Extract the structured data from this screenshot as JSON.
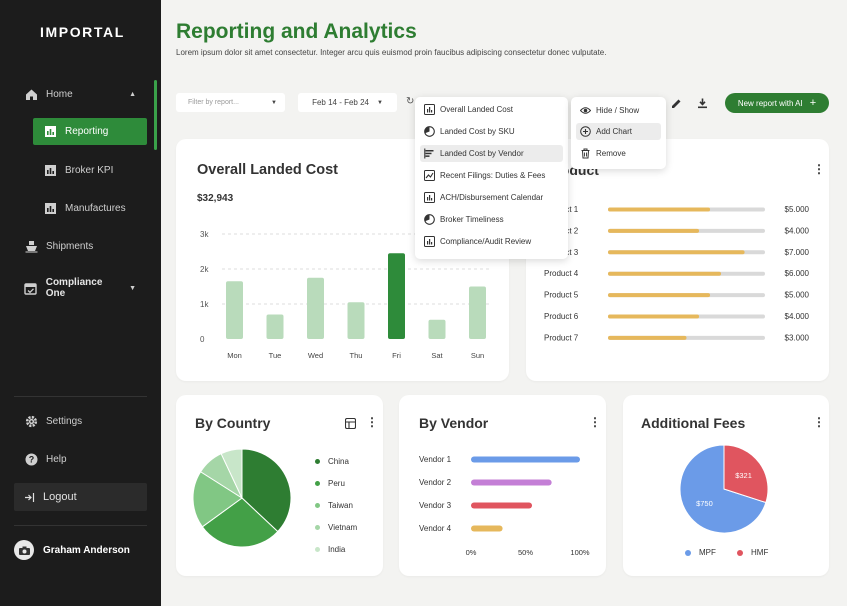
{
  "sidebar": {
    "brand": "IMPORTAL",
    "items": [
      {
        "label": "Home"
      },
      {
        "label": "Reporting"
      },
      {
        "label": "Broker KPI"
      },
      {
        "label": "Manufactures"
      },
      {
        "label": "Shipments"
      },
      {
        "label": "Compliance One"
      }
    ],
    "settings": "Settings",
    "help": "Help",
    "logout": "Logout",
    "user": "Graham Anderson"
  },
  "header": {
    "title": "Reporting and Analytics",
    "subtitle": "Lorem ipsum dolor sit amet consectetur. Integer arcu quis euismod proin faucibus adipiscing consectetur donec vulputate."
  },
  "toolbar": {
    "filter_placeholder": "Filter by report...",
    "date_range": "Feb 14 - Feb 24",
    "new_report": "New report with AI"
  },
  "report_menu": [
    "Overall Landed Cost",
    "Landed Cost by SKU",
    "Landed Cost by Vendor",
    "Recent Filings: Duties & Fees",
    "ACH/Disbursement Calendar",
    "Broker Timeliness",
    "Compliance/Audit Review"
  ],
  "action_menu": [
    "Hide / Show",
    "Add Chart",
    "Remove"
  ],
  "overall": {
    "title": "Overall Landed Cost",
    "total": "$32,943",
    "chart_data": {
      "type": "bar",
      "categories": [
        "Mon",
        "Tue",
        "Wed",
        "Thu",
        "Fri",
        "Sat",
        "Sun"
      ],
      "values": [
        1650,
        700,
        1750,
        1050,
        2450,
        550,
        1500
      ],
      "highlight": "Fri",
      "ylim": [
        0,
        3000
      ],
      "yticks": [
        "3k",
        "2k",
        "1k",
        "0"
      ],
      "colors": {
        "base": "#b9dbbb",
        "highlight": "#2e8b3a"
      }
    }
  },
  "product": {
    "title": "Product",
    "chart_data": {
      "type": "bar",
      "orientation": "horizontal",
      "categories": [
        "Product 1",
        "Product 2",
        "Product 3",
        "Product 4",
        "Product 5",
        "Product 6",
        "Product 7"
      ],
      "values": [
        5000,
        4000,
        7000,
        6000,
        5000,
        4000,
        3000
      ],
      "labels": [
        "$5.000",
        "$4.000",
        "$7.000",
        "$6.000",
        "$5.000",
        "$4.000",
        "$3.000"
      ],
      "fill": [
        0.65,
        0.58,
        0.87,
        0.72,
        0.65,
        0.58,
        0.5
      ],
      "colors": {
        "bar": "#e6b85c",
        "track": "#d9d9d9"
      }
    }
  },
  "country": {
    "title": "By Country",
    "chart_data": {
      "type": "pie",
      "labels": [
        "China",
        "Peru",
        "Taiwan",
        "Vietnam",
        "India"
      ],
      "values": [
        37,
        28,
        19,
        9,
        7
      ],
      "colors": [
        "#2e7d32",
        "#43a047",
        "#81c784",
        "#a5d6a7",
        "#c8e6c9"
      ]
    }
  },
  "vendor": {
    "title": "By Vendor",
    "chart_data": {
      "type": "bar",
      "orientation": "horizontal",
      "categories": [
        "Vendor 1",
        "Vendor 2",
        "Vendor 3",
        "Vendor 4"
      ],
      "values": [
        100,
        74,
        56,
        29
      ],
      "xticks": [
        "0%",
        "50%",
        "100%"
      ],
      "colors": [
        "#6b9be8",
        "#c47fd6",
        "#e0555f",
        "#e6b85c"
      ]
    }
  },
  "fees": {
    "title": "Additional Fees",
    "chart_data": {
      "type": "pie",
      "labels": [
        "MPF",
        "HMF"
      ],
      "values": [
        750,
        321
      ],
      "value_labels": [
        "$750",
        "$321"
      ],
      "colors": [
        "#6b9be8",
        "#e0555f"
      ]
    }
  }
}
